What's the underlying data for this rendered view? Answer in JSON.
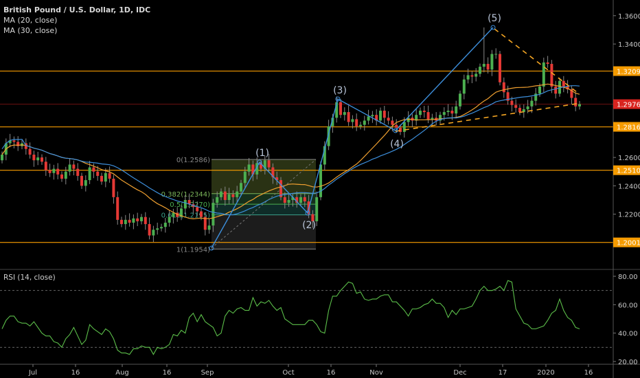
{
  "chart_data": [
    {
      "type": "candlestick",
      "title": "British Pound / U.S. Dollar, 1D, IDC",
      "indicators": [
        {
          "name": "MA (20, close)",
          "color": "#f0a030"
        },
        {
          "name": "MA (30, close)",
          "color": "#3d8fdc"
        }
      ],
      "closes": [
        1.262,
        1.27,
        1.272,
        1.271,
        1.268,
        1.27,
        1.266,
        1.262,
        1.258,
        1.26,
        1.257,
        1.251,
        1.249,
        1.252,
        1.248,
        1.245,
        1.25,
        1.255,
        1.252,
        1.247,
        1.24,
        1.244,
        1.253,
        1.25,
        1.247,
        1.243,
        1.249,
        1.245,
        1.232,
        1.216,
        1.213,
        1.216,
        1.214,
        1.217,
        1.215,
        1.218,
        1.213,
        1.205,
        1.209,
        1.21,
        1.211,
        1.214,
        1.218,
        1.221,
        1.218,
        1.224,
        1.23,
        1.227,
        1.225,
        1.222,
        1.218,
        1.209,
        1.212,
        1.228,
        1.232,
        1.236,
        1.23,
        1.234,
        1.232,
        1.236,
        1.242,
        1.25,
        1.255,
        1.248,
        1.256,
        1.252,
        1.258,
        1.253,
        1.246,
        1.244,
        1.232,
        1.228,
        1.23,
        1.232,
        1.228,
        1.232,
        1.229,
        1.22,
        1.215,
        1.232,
        1.255,
        1.268,
        1.282,
        1.288,
        1.299,
        1.29,
        1.292,
        1.285,
        1.287,
        1.282,
        1.283,
        1.286,
        1.289,
        1.29,
        1.286,
        1.293,
        1.288,
        1.286,
        1.283,
        1.281,
        1.278,
        1.285,
        1.288,
        1.286,
        1.29,
        1.293,
        1.292,
        1.287,
        1.288,
        1.286,
        1.29,
        1.292,
        1.293,
        1.291,
        1.296,
        1.305,
        1.315,
        1.318,
        1.317,
        1.319,
        1.324,
        1.326,
        1.322,
        1.333,
        1.333,
        1.313,
        1.306,
        1.3,
        1.297,
        1.295,
        1.292,
        1.294,
        1.296,
        1.3,
        1.305,
        1.31,
        1.327,
        1.326,
        1.31,
        1.305,
        1.314,
        1.31,
        1.308,
        1.302,
        1.296,
        1.2976
      ],
      "price_axis": {
        "ticks": [
          "1.3600",
          "1.3400",
          "1.2600",
          "1.2400",
          "1.2200"
        ],
        "range": [
          1.187,
          1.371
        ]
      },
      "levels": [
        {
          "label": "1.3209",
          "color": "#f59b00"
        },
        {
          "label": "1.2976",
          "color": "#d9241f"
        },
        {
          "label": "1.2816",
          "color": "#f59b00"
        },
        {
          "label": "1.2510",
          "color": "#f59b00"
        },
        {
          "label": "1.2001",
          "color": "#f59b00"
        }
      ],
      "fibonacci": [
        {
          "ratio": 0,
          "label": "0(1.2586)"
        },
        {
          "ratio": 0.382,
          "label": "0.382(1.2344)"
        },
        {
          "ratio": 0.5,
          "label": "0.5(1.2270)"
        },
        {
          "ratio": 0.618,
          "label": "0.618(1.2195)"
        },
        {
          "ratio": 1,
          "label": "1(1.1954)"
        }
      ],
      "elliott_waves": [
        "(1)",
        "(2)",
        "(3)",
        "(4)",
        "(5)"
      ],
      "x_axis": [
        "Jul",
        "16",
        "Aug",
        "16",
        "Sep",
        "Oct",
        "16",
        "Nov",
        "Dec",
        "17",
        "2020",
        "16"
      ],
      "colors": {
        "up": "#4caf50",
        "down": "#e53935",
        "wave": "#3d8fdc",
        "trendline": "#f5a623"
      }
    },
    {
      "type": "line",
      "title": "RSI (14, close)",
      "color": "#5cbf4a",
      "ylim": [
        20,
        80
      ],
      "bands": [
        30,
        70
      ],
      "ticks": [
        "80.00",
        "60.00",
        "40.00",
        "20.00"
      ],
      "values": [
        43,
        49,
        52,
        52,
        48,
        47,
        47,
        45,
        48,
        44,
        40,
        38,
        38,
        34,
        33,
        30,
        36,
        39,
        44,
        38,
        32,
        35,
        46,
        43,
        41,
        39,
        43,
        41,
        36,
        28,
        26,
        26,
        25,
        29,
        29,
        31,
        30,
        30,
        25,
        30,
        29,
        30,
        32,
        39,
        38,
        42,
        40,
        51,
        54,
        48,
        53,
        48,
        46,
        44,
        38,
        40,
        52,
        56,
        54,
        57,
        58,
        56,
        56,
        65,
        59,
        62,
        61,
        63,
        59,
        56,
        58,
        50,
        48,
        46,
        46,
        46,
        46,
        49,
        49,
        46,
        41,
        40,
        56,
        66,
        66,
        70,
        73,
        76,
        75,
        68,
        69,
        64,
        63,
        64,
        64,
        66,
        67,
        67,
        62,
        62,
        59,
        56,
        52,
        57,
        57,
        58,
        60,
        61,
        64,
        61,
        61,
        58,
        51,
        56,
        53,
        57,
        57,
        58,
        59,
        64,
        70,
        73,
        70,
        70,
        71,
        73,
        70,
        77,
        76,
        57,
        52,
        47,
        46,
        43,
        43,
        44,
        45,
        49,
        54,
        56,
        64,
        56,
        51,
        49,
        44,
        43
      ]
    }
  ]
}
